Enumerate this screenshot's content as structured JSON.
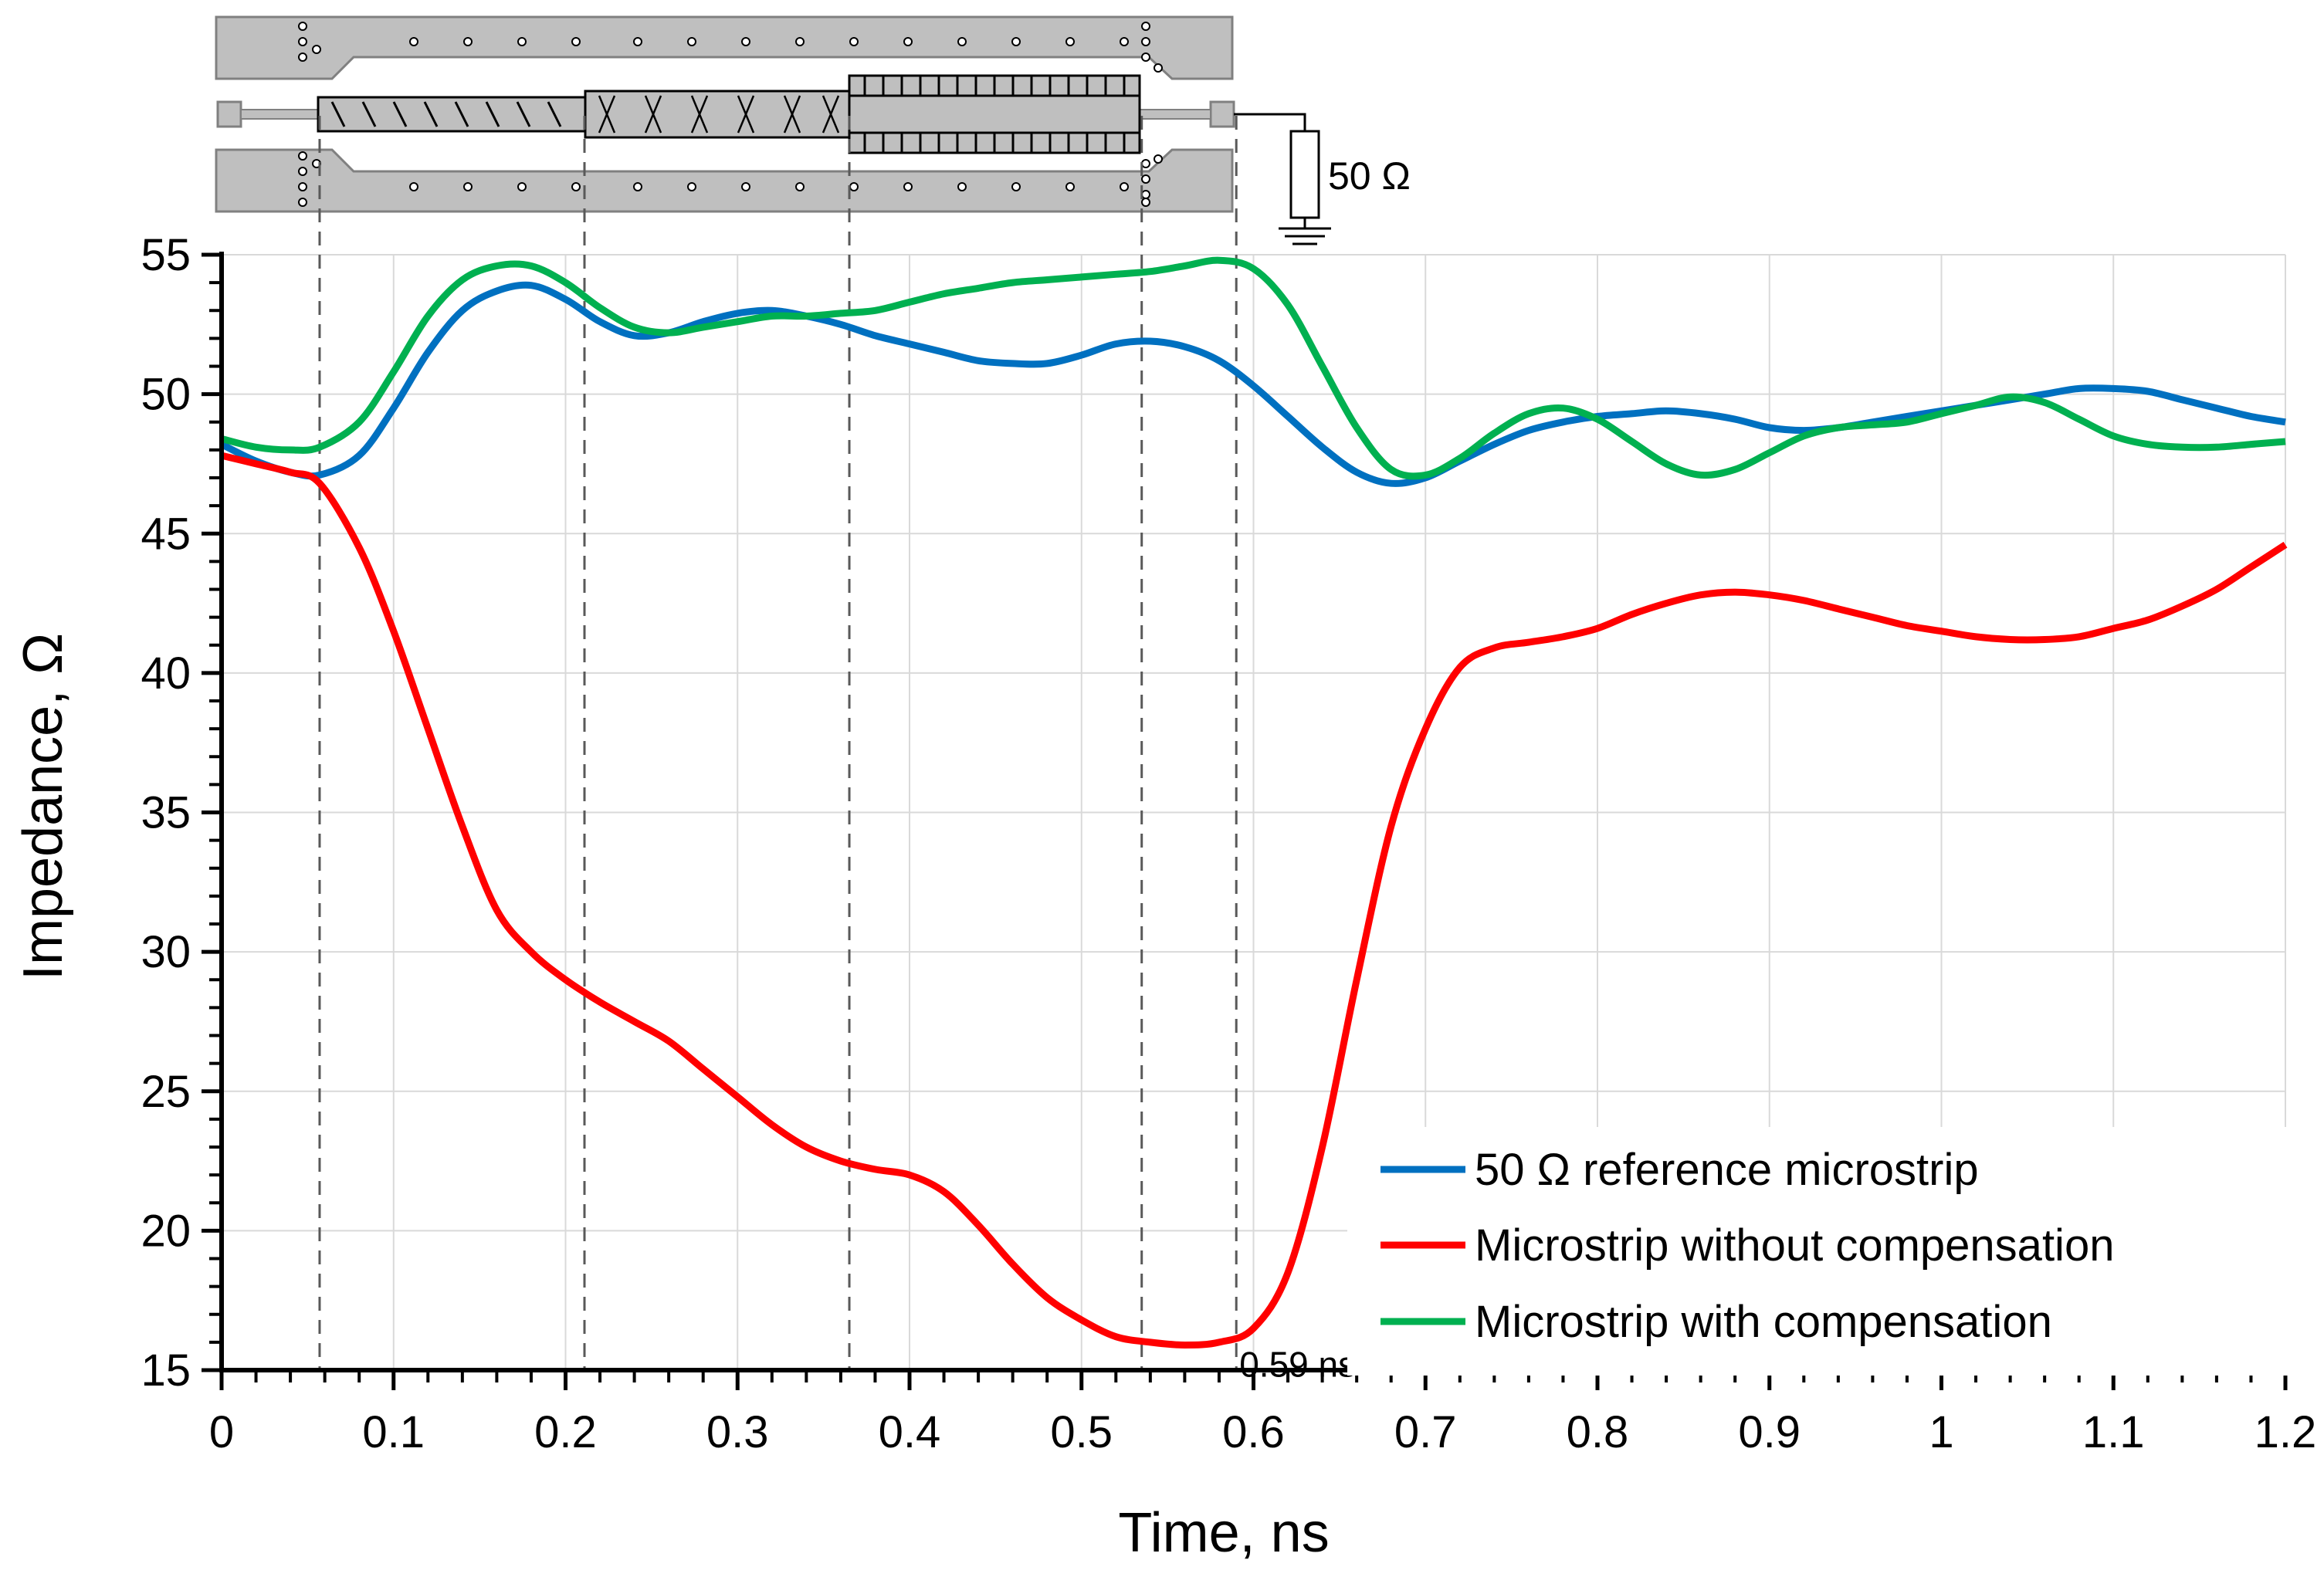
{
  "colors": {
    "reference": "#0070C0",
    "without_comp": "#FF0000",
    "with_comp": "#00B050",
    "grid": "#D9D9D9",
    "board": "#BFBFBF"
  },
  "chart_data": {
    "type": "line",
    "xlabel": "Time, ns",
    "ylabel": "Impedance, Ω",
    "xlim": [
      0,
      1.2
    ],
    "ylim": [
      15,
      55
    ],
    "x_ticks": [
      0,
      0.1,
      0.2,
      0.3,
      0.4,
      0.5,
      0.6,
      0.7,
      0.8,
      0.9,
      1.0,
      1.1,
      1.2
    ],
    "x_tick_labels": [
      "0",
      "0.1",
      "0.2",
      "0.3",
      "0.4",
      "0.5",
      "0.6",
      "0.7",
      "0.8",
      "0.9",
      "1",
      "1.1",
      "1.2"
    ],
    "y_ticks": [
      15,
      20,
      25,
      30,
      35,
      40,
      45,
      50,
      55
    ],
    "y_tick_labels": [
      "15",
      "20",
      "25",
      "30",
      "35",
      "40",
      "45",
      "50",
      "55"
    ],
    "grid": true,
    "legend_position": "bottom-right",
    "vertical_markers": [
      0.057,
      0.211,
      0.365,
      0.535,
      0.59
    ],
    "annotation": {
      "text": "0.59 ns",
      "x": 0.59,
      "y": 15.6
    },
    "series": [
      {
        "name": "50 Ω reference microstrip",
        "color": "#0070C0",
        "x": [
          0,
          0.02,
          0.04,
          0.057,
          0.08,
          0.1,
          0.12,
          0.14,
          0.16,
          0.18,
          0.2,
          0.22,
          0.24,
          0.26,
          0.28,
          0.3,
          0.32,
          0.34,
          0.36,
          0.38,
          0.4,
          0.42,
          0.44,
          0.46,
          0.48,
          0.5,
          0.52,
          0.54,
          0.56,
          0.58,
          0.6,
          0.62,
          0.64,
          0.66,
          0.68,
          0.7,
          0.72,
          0.74,
          0.76,
          0.78,
          0.8,
          0.82,
          0.84,
          0.86,
          0.88,
          0.9,
          0.92,
          0.94,
          0.96,
          0.98,
          1.0,
          1.02,
          1.04,
          1.06,
          1.08,
          1.1,
          1.12,
          1.14,
          1.16,
          1.18,
          1.2
        ],
        "values": [
          48.2,
          47.6,
          47.2,
          47.1,
          47.8,
          49.5,
          51.5,
          53.0,
          53.7,
          53.9,
          53.4,
          52.6,
          52.1,
          52.2,
          52.6,
          52.9,
          53.0,
          52.8,
          52.5,
          52.1,
          51.8,
          51.5,
          51.2,
          51.1,
          51.1,
          51.4,
          51.8,
          51.9,
          51.7,
          51.2,
          50.3,
          49.2,
          48.1,
          47.2,
          46.8,
          47.0,
          47.6,
          48.2,
          48.7,
          49.0,
          49.2,
          49.3,
          49.4,
          49.3,
          49.1,
          48.8,
          48.7,
          48.8,
          49.0,
          49.2,
          49.4,
          49.6,
          49.8,
          50.0,
          50.2,
          50.2,
          50.1,
          49.8,
          49.5,
          49.2,
          49.0
        ]
      },
      {
        "name": "Microstrip without compensation",
        "color": "#FF0000",
        "x": [
          0,
          0.02,
          0.04,
          0.057,
          0.08,
          0.1,
          0.12,
          0.14,
          0.16,
          0.18,
          0.2,
          0.22,
          0.24,
          0.26,
          0.28,
          0.3,
          0.32,
          0.34,
          0.36,
          0.38,
          0.4,
          0.42,
          0.44,
          0.46,
          0.48,
          0.5,
          0.52,
          0.54,
          0.56,
          0.58,
          0.6,
          0.62,
          0.64,
          0.66,
          0.68,
          0.7,
          0.72,
          0.74,
          0.76,
          0.78,
          0.8,
          0.82,
          0.84,
          0.86,
          0.88,
          0.9,
          0.92,
          0.94,
          0.96,
          0.98,
          1.0,
          1.02,
          1.04,
          1.06,
          1.08,
          1.1,
          1.12,
          1.14,
          1.16,
          1.18,
          1.2
        ],
        "values": [
          47.8,
          47.5,
          47.2,
          46.8,
          44.5,
          41.5,
          38.0,
          34.5,
          31.5,
          30.0,
          29.0,
          28.2,
          27.5,
          26.8,
          25.8,
          24.8,
          23.8,
          23.0,
          22.5,
          22.2,
          22.0,
          21.4,
          20.2,
          18.8,
          17.6,
          16.8,
          16.2,
          16.0,
          15.9,
          16.0,
          16.5,
          18.5,
          23.0,
          29.0,
          34.5,
          38.0,
          40.2,
          40.9,
          41.1,
          41.3,
          41.6,
          42.1,
          42.5,
          42.8,
          42.9,
          42.8,
          42.6,
          42.3,
          42.0,
          41.7,
          41.5,
          41.3,
          41.2,
          41.2,
          41.3,
          41.6,
          41.9,
          42.4,
          43.0,
          43.8,
          44.6
        ]
      },
      {
        "name": "Microstrip with compensation",
        "color": "#00B050",
        "x": [
          0,
          0.02,
          0.04,
          0.057,
          0.08,
          0.1,
          0.12,
          0.14,
          0.16,
          0.18,
          0.2,
          0.22,
          0.24,
          0.26,
          0.28,
          0.3,
          0.32,
          0.34,
          0.36,
          0.38,
          0.4,
          0.42,
          0.44,
          0.46,
          0.48,
          0.5,
          0.52,
          0.54,
          0.56,
          0.58,
          0.6,
          0.62,
          0.64,
          0.66,
          0.68,
          0.7,
          0.72,
          0.74,
          0.76,
          0.78,
          0.8,
          0.82,
          0.84,
          0.86,
          0.88,
          0.9,
          0.92,
          0.94,
          0.96,
          0.98,
          1.0,
          1.02,
          1.04,
          1.06,
          1.08,
          1.1,
          1.12,
          1.14,
          1.16,
          1.18,
          1.2
        ],
        "values": [
          48.4,
          48.1,
          48.0,
          48.1,
          49.0,
          50.8,
          52.8,
          54.1,
          54.6,
          54.6,
          54.0,
          53.1,
          52.4,
          52.2,
          52.4,
          52.6,
          52.8,
          52.8,
          52.9,
          53.0,
          53.3,
          53.6,
          53.8,
          54.0,
          54.1,
          54.2,
          54.3,
          54.4,
          54.6,
          54.8,
          54.5,
          53.2,
          51.0,
          48.8,
          47.3,
          47.1,
          47.7,
          48.6,
          49.3,
          49.5,
          49.1,
          48.3,
          47.5,
          47.1,
          47.3,
          47.9,
          48.5,
          48.8,
          48.9,
          49.0,
          49.3,
          49.6,
          49.9,
          49.7,
          49.1,
          48.5,
          48.2,
          48.1,
          48.1,
          48.2,
          48.3
        ]
      }
    ]
  },
  "circuit": {
    "termination_label": "50 Ω"
  }
}
